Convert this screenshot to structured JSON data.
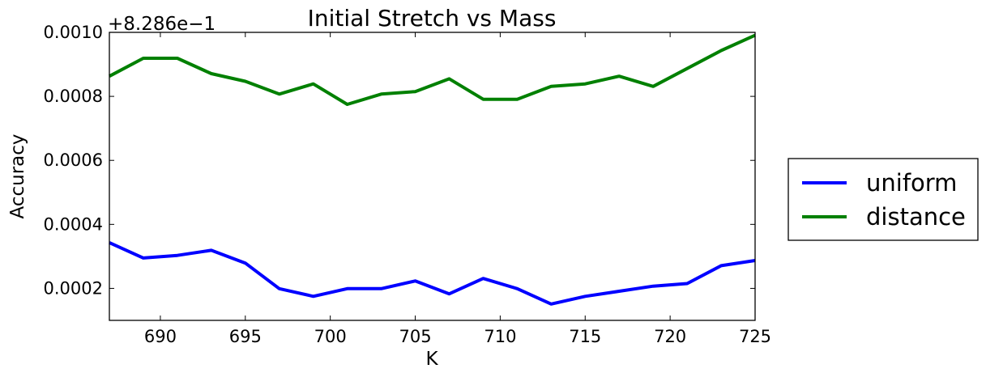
{
  "chart_data": {
    "type": "line",
    "title": "Initial Stretch vs Mass",
    "xlabel": "K",
    "ylabel": "Accuracy",
    "offset_text": "+8.286e−1",
    "xlim": [
      687,
      725
    ],
    "ylim": [
      0.0001,
      0.001
    ],
    "xticks": [
      690,
      695,
      700,
      705,
      710,
      715,
      720,
      725
    ],
    "yticks": [
      0.0002,
      0.0004,
      0.0006,
      0.0008,
      0.001
    ],
    "ytick_labels": [
      "0.0002",
      "0.0004",
      "0.0006",
      "0.0008",
      "0.0010"
    ],
    "x": [
      687,
      689,
      691,
      693,
      695,
      697,
      699,
      701,
      703,
      705,
      707,
      709,
      711,
      713,
      715,
      717,
      719,
      721,
      723,
      725
    ],
    "series": [
      {
        "name": "uniform",
        "color": "#0000ff",
        "values": [
          0.000343,
          0.000295,
          0.000303,
          0.000319,
          0.000279,
          0.000199,
          0.000175,
          0.000199,
          0.000199,
          0.000223,
          0.000183,
          0.000231,
          0.000199,
          0.000151,
          0.000175,
          0.000191,
          0.000207,
          0.000215,
          0.000271,
          0.000287
        ]
      },
      {
        "name": "distance",
        "color": "#008000",
        "values": [
          0.000863,
          0.000919,
          0.000919,
          0.000871,
          0.000847,
          0.000807,
          0.000839,
          0.000775,
          0.000807,
          0.000815,
          0.000855,
          0.000791,
          0.000791,
          0.000831,
          0.000839,
          0.000863,
          0.000831,
          0.000887,
          0.000943,
          0.000991
        ]
      }
    ],
    "grid": false,
    "legend_position": "outside-right"
  }
}
